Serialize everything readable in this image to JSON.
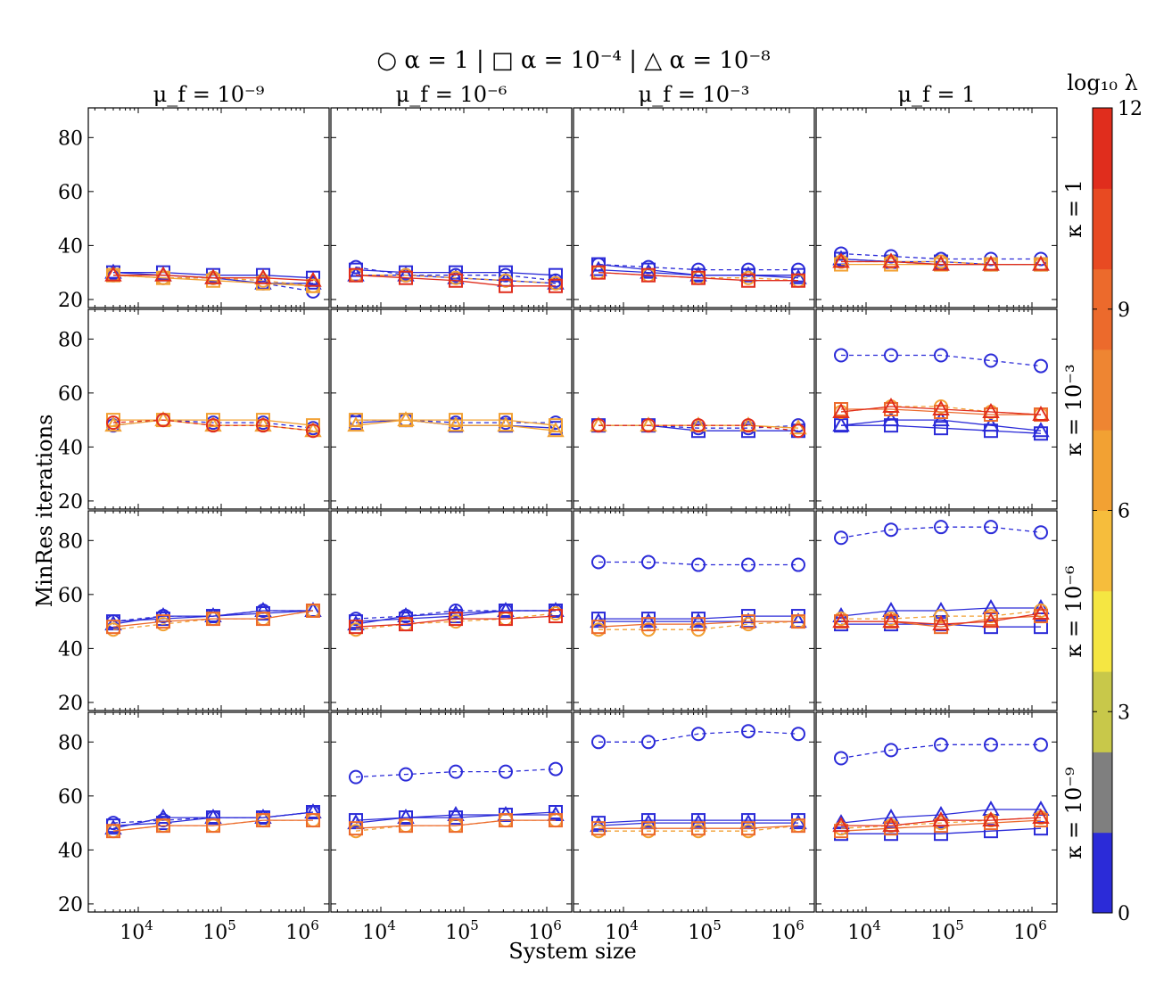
{
  "header": {
    "legend_line": "○ α = 1 | □ α = 10⁻⁴ | △ α = 10⁻⁸"
  },
  "columns": [
    "μ_f = 10⁻⁹",
    "μ_f = 10⁻⁶",
    "μ_f = 10⁻³",
    "μ_f = 1"
  ],
  "rows": [
    "κ = 1",
    "κ = 10⁻³",
    "κ = 10⁻⁶",
    "κ = 10⁻⁹"
  ],
  "ylabel": "MinRes iterations",
  "xlabel": "System size",
  "colorbar": {
    "label": "log₁₀ λ",
    "ticks": [
      "0",
      "3",
      "6",
      "9",
      "12"
    ],
    "range": [
      0,
      12
    ],
    "colors": [
      "#2b2bd8",
      "#7f7f7f",
      "#c8c84a",
      "#f5e642",
      "#f6bd3c",
      "#f2a133",
      "#ee8532",
      "#ec6a2c",
      "#e84a22",
      "#e02d1d"
    ]
  },
  "chart_data": {
    "type": "line",
    "x_scale": "log",
    "x": [
      5000,
      20000,
      80000,
      320000,
      1280000
    ],
    "xlim": [
      2500,
      2000000
    ],
    "ylim": [
      17,
      91
    ],
    "yticks": [
      20,
      40,
      60,
      80
    ],
    "xticks": [
      "10^4",
      "10^5",
      "10^6"
    ],
    "grid": false,
    "panels": [
      {
        "row": 0,
        "col": 0,
        "series": [
          {
            "alpha": "1",
            "lambda": 0,
            "values": [
              29,
              28,
              28,
              26,
              23
            ]
          },
          {
            "alpha": "1e-4",
            "lambda": 0,
            "values": [
              30,
              30,
              29,
              29,
              28
            ]
          },
          {
            "alpha": "1e-8",
            "lambda": 0,
            "values": [
              30,
              29,
              28,
              26,
              26
            ]
          },
          {
            "alpha": "1",
            "lambda": 6,
            "values": [
              29,
              28,
              28,
              27,
              25
            ]
          },
          {
            "alpha": "1e-4",
            "lambda": 6,
            "values": [
              29,
              28,
              27,
              26,
              25
            ]
          },
          {
            "alpha": "1e-8",
            "lambda": 12,
            "values": [
              29,
              29,
              28,
              28,
              27
            ]
          }
        ]
      },
      {
        "row": 0,
        "col": 1,
        "series": [
          {
            "alpha": "1",
            "lambda": 0,
            "values": [
              32,
              29,
              29,
              29,
              27
            ]
          },
          {
            "alpha": "1e-4",
            "lambda": 0,
            "values": [
              31,
              30,
              30,
              30,
              29
            ]
          },
          {
            "alpha": "1e-8",
            "lambda": 0,
            "values": [
              29,
              29,
              28,
              27,
              26
            ]
          },
          {
            "alpha": "1",
            "lambda": 6,
            "values": [
              29,
              29,
              28,
              27,
              26
            ]
          },
          {
            "alpha": "1e-4",
            "lambda": 12,
            "values": [
              29,
              28,
              27,
              25,
              25
            ]
          }
        ]
      },
      {
        "row": 0,
        "col": 2,
        "series": [
          {
            "alpha": "1",
            "lambda": 0,
            "values": [
              33,
              32,
              31,
              31,
              31
            ]
          },
          {
            "alpha": "1e-4",
            "lambda": 0,
            "values": [
              33,
              31,
              29,
              29,
              29
            ]
          },
          {
            "alpha": "1e-8",
            "lambda": 0,
            "values": [
              31,
              30,
              29,
              29,
              28
            ]
          },
          {
            "alpha": "1",
            "lambda": 6,
            "values": [
              30,
              29,
              28,
              28,
              27
            ]
          },
          {
            "alpha": "1e-4",
            "lambda": 12,
            "values": [
              30,
              29,
              28,
              27,
              27
            ]
          }
        ]
      },
      {
        "row": 0,
        "col": 3,
        "series": [
          {
            "alpha": "1",
            "lambda": 0,
            "values": [
              37,
              36,
              35,
              35,
              35
            ]
          },
          {
            "alpha": "1e-4",
            "lambda": 0,
            "values": [
              35,
              34,
              34,
              33,
              33
            ]
          },
          {
            "alpha": "1e-8",
            "lambda": 0,
            "values": [
              35,
              34,
              33,
              33,
              33
            ]
          },
          {
            "alpha": "1",
            "lambda": 6,
            "values": [
              34,
              34,
              34,
              33,
              33
            ]
          },
          {
            "alpha": "1e-4",
            "lambda": 6,
            "values": [
              33,
              33,
              33,
              33,
              33
            ]
          },
          {
            "alpha": "1e-8",
            "lambda": 12,
            "values": [
              34,
              34,
              33,
              33,
              33
            ]
          }
        ]
      },
      {
        "row": 1,
        "col": 0,
        "series": [
          {
            "alpha": "1",
            "lambda": 0,
            "values": [
              48,
              50,
              49,
              49,
              47
            ]
          },
          {
            "alpha": "1e-4",
            "lambda": 6,
            "values": [
              50,
              50,
              50,
              50,
              48
            ]
          },
          {
            "alpha": "1e-8",
            "lambda": 6,
            "values": [
              48,
              50,
              48,
              48,
              46
            ]
          },
          {
            "alpha": "1",
            "lambda": 12,
            "values": [
              49,
              50,
              48,
              48,
              46
            ]
          }
        ]
      },
      {
        "row": 1,
        "col": 1,
        "series": [
          {
            "alpha": "1",
            "lambda": 0,
            "values": [
              50,
              50,
              49,
              49,
              49
            ]
          },
          {
            "alpha": "1e-4",
            "lambda": 0,
            "values": [
              49,
              50,
              48,
              48,
              47
            ]
          },
          {
            "alpha": "1e-8",
            "lambda": 6,
            "values": [
              48,
              50,
              48,
              48,
              46
            ]
          },
          {
            "alpha": "1e-4",
            "lambda": 6,
            "values": [
              50,
              50,
              50,
              50,
              48
            ]
          }
        ]
      },
      {
        "row": 1,
        "col": 2,
        "series": [
          {
            "alpha": "1",
            "lambda": 0,
            "values": [
              48,
              48,
              47,
              47,
              48
            ]
          },
          {
            "alpha": "1e-4",
            "lambda": 0,
            "values": [
              48,
              48,
              46,
              46,
              46
            ]
          },
          {
            "alpha": "1e-8",
            "lambda": 6,
            "values": [
              48,
              48,
              48,
              48,
              47
            ]
          },
          {
            "alpha": "1",
            "lambda": 12,
            "values": [
              48,
              48,
              48,
              48,
              46
            ]
          }
        ]
      },
      {
        "row": 1,
        "col": 3,
        "series": [
          {
            "alpha": "1",
            "lambda": 0,
            "values": [
              74,
              74,
              74,
              72,
              70
            ]
          },
          {
            "alpha": "1e-4",
            "lambda": 0,
            "values": [
              48,
              48,
              47,
              46,
              45
            ]
          },
          {
            "alpha": "1e-8",
            "lambda": 0,
            "values": [
              48,
              50,
              50,
              48,
              46
            ]
          },
          {
            "alpha": "1",
            "lambda": 6,
            "values": [
              53,
              55,
              55,
              53,
              52
            ]
          },
          {
            "alpha": "1e-4",
            "lambda": 9,
            "values": [
              54,
              54,
              53,
              52,
              52
            ]
          },
          {
            "alpha": "1e-8",
            "lambda": 12,
            "values": [
              53,
              55,
              54,
              53,
              52
            ]
          }
        ]
      },
      {
        "row": 2,
        "col": 0,
        "series": [
          {
            "alpha": "1",
            "lambda": 0,
            "values": [
              50,
              52,
              52,
              54,
              54
            ]
          },
          {
            "alpha": "1e-4",
            "lambda": 0,
            "values": [
              50,
              51,
              52,
              53,
              54
            ]
          },
          {
            "alpha": "1e-8",
            "lambda": 0,
            "values": [
              49,
              52,
              52,
              54,
              54
            ]
          },
          {
            "alpha": "1",
            "lambda": 6,
            "values": [
              47,
              49,
              51,
              51,
              54
            ]
          },
          {
            "alpha": "1e-4",
            "lambda": 9,
            "values": [
              48,
              50,
              51,
              51,
              54
            ]
          }
        ]
      },
      {
        "row": 2,
        "col": 1,
        "series": [
          {
            "alpha": "1",
            "lambda": 0,
            "values": [
              51,
              52,
              54,
              54,
              54
            ]
          },
          {
            "alpha": "1e-4",
            "lambda": 0,
            "values": [
              50,
              51,
              52,
              54,
              54
            ]
          },
          {
            "alpha": "1e-8",
            "lambda": 0,
            "values": [
              49,
              52,
              53,
              54,
              54
            ]
          },
          {
            "alpha": "1",
            "lambda": 6,
            "values": [
              47,
              49,
              50,
              51,
              53
            ]
          },
          {
            "alpha": "1e-4",
            "lambda": 12,
            "values": [
              48,
              49,
              51,
              51,
              52
            ]
          }
        ]
      },
      {
        "row": 2,
        "col": 2,
        "series": [
          {
            "alpha": "1",
            "lambda": 0,
            "values": [
              72,
              72,
              71,
              71,
              71
            ]
          },
          {
            "alpha": "1e-4",
            "lambda": 0,
            "values": [
              51,
              51,
              51,
              52,
              52
            ]
          },
          {
            "alpha": "1e-8",
            "lambda": 0,
            "values": [
              50,
              50,
              50,
              50,
              50
            ]
          },
          {
            "alpha": "1",
            "lambda": 6,
            "values": [
              47,
              47,
              47,
              49,
              50
            ]
          },
          {
            "alpha": "1e-4",
            "lambda": 9,
            "values": [
              48,
              49,
              49,
              50,
              50
            ]
          }
        ]
      },
      {
        "row": 2,
        "col": 3,
        "series": [
          {
            "alpha": "1",
            "lambda": 0,
            "values": [
              81,
              84,
              85,
              85,
              83
            ]
          },
          {
            "alpha": "1e-4",
            "lambda": 0,
            "values": [
              49,
              49,
              49,
              48,
              48
            ]
          },
          {
            "alpha": "1e-8",
            "lambda": 0,
            "values": [
              52,
              54,
              54,
              55,
              55
            ]
          },
          {
            "alpha": "1",
            "lambda": 6,
            "values": [
              51,
              51,
              52,
              52,
              54
            ]
          },
          {
            "alpha": "1e-4",
            "lambda": 9,
            "values": [
              50,
              50,
              48,
              51,
              52
            ]
          },
          {
            "alpha": "1e-8",
            "lambda": 12,
            "values": [
              50,
              50,
              49,
              50,
              53
            ]
          }
        ]
      },
      {
        "row": 3,
        "col": 0,
        "series": [
          {
            "alpha": "1",
            "lambda": 0,
            "values": [
              50,
              51,
              52,
              52,
              54
            ]
          },
          {
            "alpha": "1e-4",
            "lambda": 0,
            "values": [
              49,
              50,
              52,
              52,
              54
            ]
          },
          {
            "alpha": "1e-8",
            "lambda": 0,
            "values": [
              48,
              52,
              52,
              52,
              54
            ]
          },
          {
            "alpha": "1",
            "lambda": 6,
            "values": [
              47,
              49,
              49,
              51,
              51
            ]
          },
          {
            "alpha": "1e-4",
            "lambda": 9,
            "values": [
              47,
              49,
              49,
              51,
              51
            ]
          }
        ]
      },
      {
        "row": 3,
        "col": 1,
        "series": [
          {
            "alpha": "1",
            "lambda": 0,
            "values": [
              67,
              68,
              69,
              69,
              70
            ]
          },
          {
            "alpha": "1e-4",
            "lambda": 0,
            "values": [
              51,
              52,
              52,
              53,
              54
            ]
          },
          {
            "alpha": "1e-8",
            "lambda": 0,
            "values": [
              50,
              52,
              53,
              53,
              53
            ]
          },
          {
            "alpha": "1",
            "lambda": 6,
            "values": [
              47,
              49,
              49,
              51,
              51
            ]
          },
          {
            "alpha": "1e-4",
            "lambda": 9,
            "values": [
              48,
              49,
              49,
              51,
              51
            ]
          }
        ]
      },
      {
        "row": 3,
        "col": 2,
        "series": [
          {
            "alpha": "1",
            "lambda": 0,
            "values": [
              80,
              80,
              83,
              84,
              83
            ]
          },
          {
            "alpha": "1e-4",
            "lambda": 0,
            "values": [
              50,
              51,
              51,
              51,
              51
            ]
          },
          {
            "alpha": "1e-8",
            "lambda": 0,
            "values": [
              49,
              50,
              50,
              50,
              50
            ]
          },
          {
            "alpha": "1",
            "lambda": 6,
            "values": [
              47,
              47,
              47,
              47,
              49
            ]
          },
          {
            "alpha": "1e-4",
            "lambda": 9,
            "values": [
              48,
              48,
              48,
              48,
              49
            ]
          }
        ]
      },
      {
        "row": 3,
        "col": 3,
        "series": [
          {
            "alpha": "1",
            "lambda": 0,
            "values": [
              74,
              77,
              79,
              79,
              79
            ]
          },
          {
            "alpha": "1e-4",
            "lambda": 0,
            "values": [
              46,
              46,
              46,
              47,
              48
            ]
          },
          {
            "alpha": "1e-8",
            "lambda": 0,
            "values": [
              50,
              52,
              53,
              55,
              55
            ]
          },
          {
            "alpha": "1",
            "lambda": 6,
            "values": [
              48,
              49,
              50,
              51,
              52
            ]
          },
          {
            "alpha": "1e-4",
            "lambda": 9,
            "values": [
              47,
              48,
              49,
              50,
              51
            ]
          },
          {
            "alpha": "1e-8",
            "lambda": 12,
            "values": [
              49,
              49,
              51,
              51,
              52
            ]
          }
        ]
      }
    ]
  }
}
